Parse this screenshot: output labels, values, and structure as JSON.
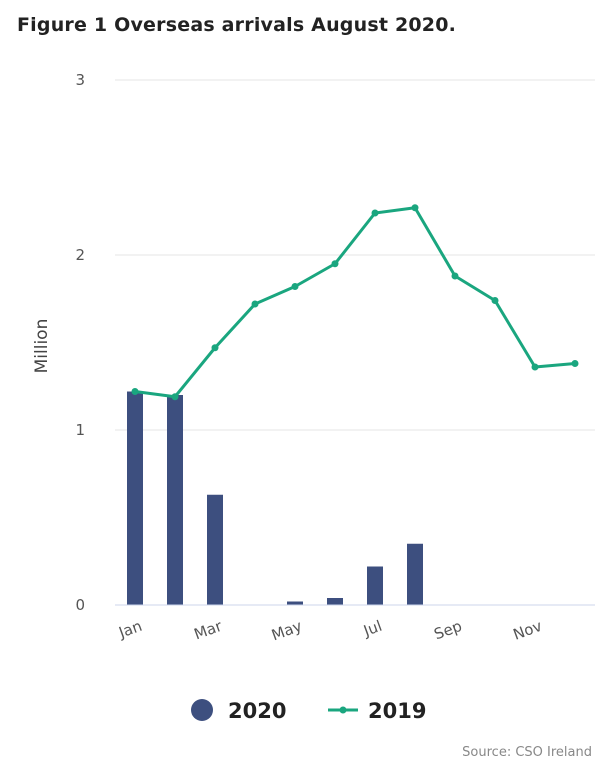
{
  "title": "Figure 1 Overseas arrivals August 2020.",
  "source": "Source: CSO Ireland",
  "chart_data": {
    "type": "bar",
    "categories": [
      "Jan",
      "Feb",
      "Mar",
      "Apr",
      "May",
      "Jun",
      "Jul",
      "Aug",
      "Sep",
      "Oct",
      "Nov",
      "Dec"
    ],
    "x_tick_labels": [
      "Jan",
      "",
      "Mar",
      "",
      "May",
      "",
      "Jul",
      "",
      "Sep",
      "",
      "Nov",
      ""
    ],
    "series": [
      {
        "name": "2020",
        "type": "bar",
        "color": "#3d4f7f",
        "values": [
          1.22,
          1.2,
          0.63,
          0.0,
          0.02,
          0.04,
          0.22,
          0.35,
          null,
          null,
          null,
          null
        ]
      },
      {
        "name": "2019",
        "type": "line",
        "color": "#1aa67f",
        "values": [
          1.22,
          1.19,
          1.47,
          1.72,
          1.82,
          1.95,
          2.24,
          2.27,
          1.88,
          1.74,
          1.36,
          1.38
        ]
      }
    ],
    "ylabel": "Million",
    "xlabel": "",
    "ylim": [
      0,
      3
    ],
    "yticks": [
      "0",
      "1",
      "2",
      "3"
    ],
    "grid": true,
    "legend_position": "bottom-center"
  }
}
